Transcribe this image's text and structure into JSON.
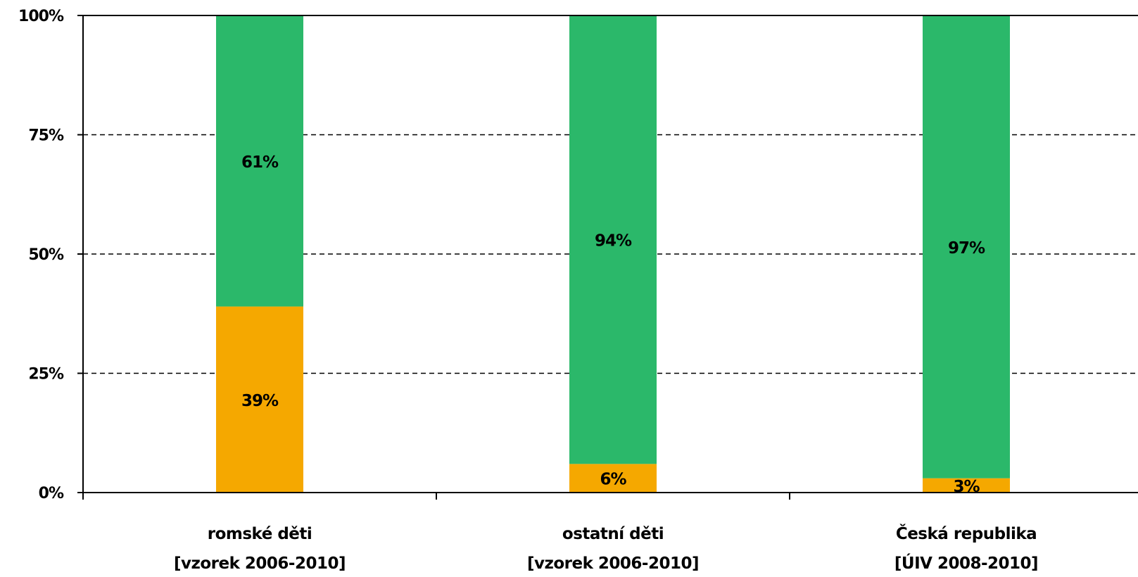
{
  "chart_data": {
    "type": "bar",
    "stacked": true,
    "categories": [
      [
        "romské děti",
        "[vzorek 2006-2010]"
      ],
      [
        "ostatní děti",
        "[vzorek 2006-2010]"
      ],
      [
        "Česká republika",
        "[ÚIV 2008-2010]"
      ]
    ],
    "series": [
      {
        "values": [
          39,
          6,
          3
        ],
        "labels": [
          "39%",
          "6%",
          "3%"
        ],
        "color": "#f5a800"
      },
      {
        "values": [
          61,
          94,
          97
        ],
        "labels": [
          "61%",
          "94%",
          "97%"
        ],
        "color": "#2bb86a"
      }
    ],
    "yticks": [
      "0%",
      "25%",
      "50%",
      "75%",
      "100%"
    ],
    "ylim": [
      0,
      100
    ],
    "grid": true,
    "legend": "none"
  }
}
